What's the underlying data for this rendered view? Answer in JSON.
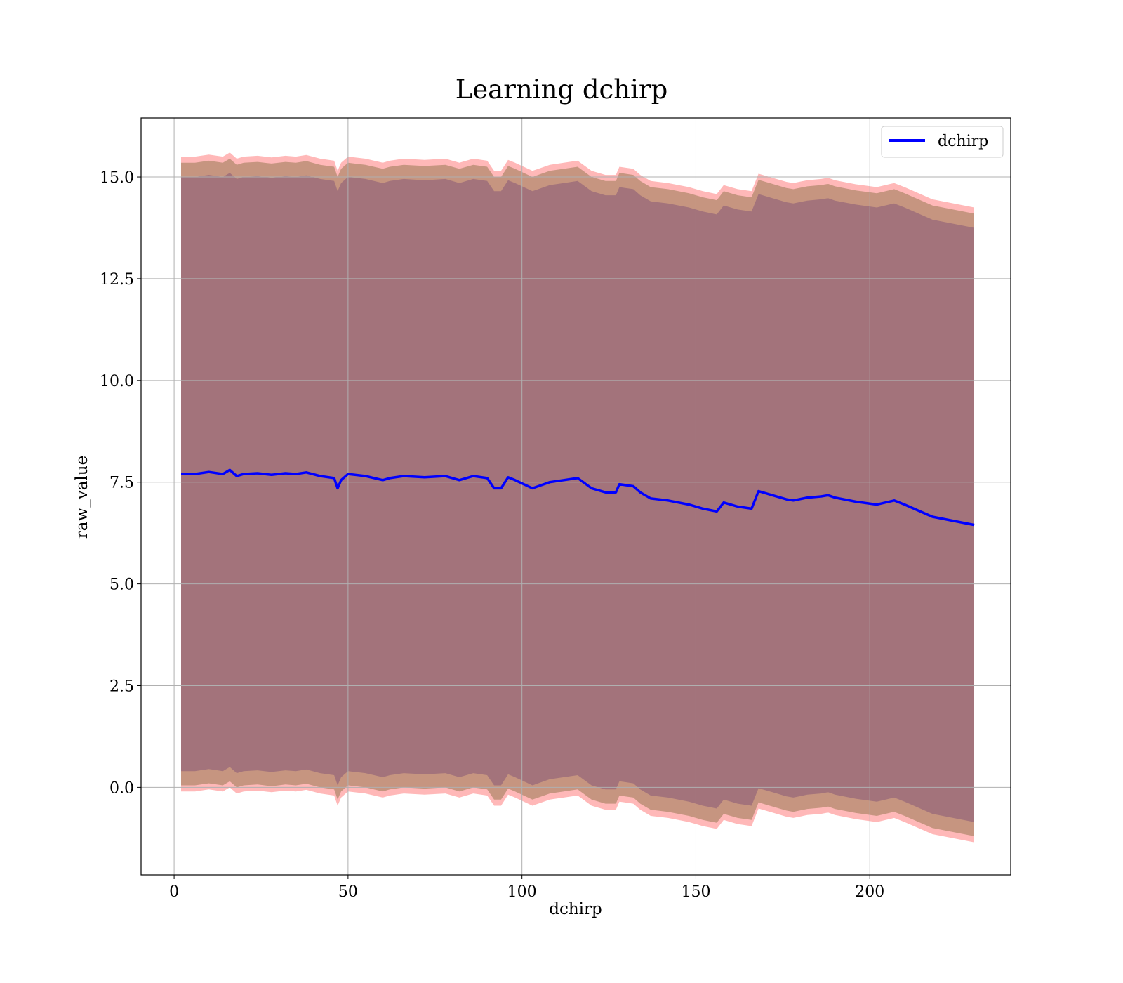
{
  "chart_data": {
    "type": "area",
    "title": "Learning dchirp",
    "xlabel": "dchirp",
    "ylabel": "raw_value",
    "xlim": [
      -9.5,
      240.5
    ],
    "ylim": [
      -2.15,
      16.45
    ],
    "xticks": [
      0,
      50,
      100,
      150,
      200
    ],
    "xtick_labels": [
      "0",
      "50",
      "100",
      "150",
      "200"
    ],
    "yticks": [
      0.0,
      2.5,
      5.0,
      7.5,
      10.0,
      12.5,
      15.0
    ],
    "ytick_labels": [
      "0.0",
      "2.5",
      "5.0",
      "7.5",
      "10.0",
      "12.5",
      "15.0"
    ],
    "grid": true,
    "legend_position": "top-right",
    "x": [
      2,
      6,
      10,
      14,
      16,
      18,
      20,
      24,
      28,
      32,
      35,
      38,
      42,
      46,
      47,
      48,
      50,
      55,
      60,
      62,
      66,
      72,
      78,
      82,
      86,
      90,
      92,
      94,
      96,
      98,
      103,
      108,
      112,
      116,
      120,
      124,
      127,
      128,
      132,
      134,
      137,
      142,
      148,
      152,
      156,
      158,
      162,
      166,
      168,
      172,
      176,
      178,
      182,
      186,
      188,
      190,
      196,
      202,
      207,
      210,
      218,
      230
    ],
    "series": [
      {
        "name": "dchirp",
        "color": "#0000ff",
        "values": [
          7.7,
          7.7,
          7.75,
          7.7,
          7.8,
          7.65,
          7.7,
          7.72,
          7.68,
          7.72,
          7.7,
          7.74,
          7.65,
          7.6,
          7.35,
          7.55,
          7.7,
          7.65,
          7.55,
          7.6,
          7.65,
          7.62,
          7.65,
          7.55,
          7.65,
          7.6,
          7.35,
          7.35,
          7.62,
          7.55,
          7.35,
          7.5,
          7.55,
          7.6,
          7.35,
          7.25,
          7.25,
          7.45,
          7.4,
          7.25,
          7.1,
          7.05,
          6.95,
          6.85,
          6.78,
          7.0,
          6.9,
          6.85,
          7.28,
          7.18,
          7.08,
          7.05,
          7.12,
          7.15,
          7.18,
          7.12,
          7.02,
          6.95,
          7.05,
          6.95,
          6.65,
          6.45
        ]
      }
    ],
    "bands": [
      {
        "offset_inner": 7.3,
        "offset_mid": 7.65,
        "offset_outer": 7.8,
        "inner_color": "#a3737b",
        "mid_color": "#c69580",
        "outer_color": "#ffb0b0"
      }
    ]
  }
}
